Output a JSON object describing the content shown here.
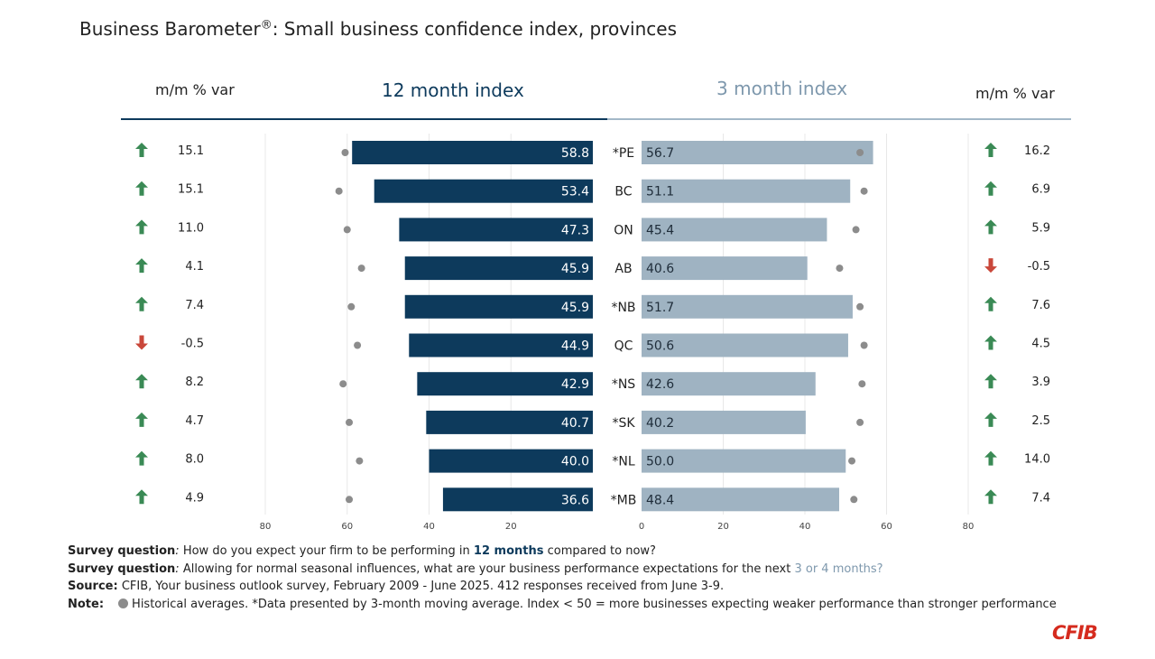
{
  "title": {
    "main": "Business Barometer",
    "sup": "®",
    "rest": ": Small business confidence index, provinces"
  },
  "headers": {
    "left_var": "m/m % var",
    "index12": "12 month index",
    "index3": "3 month index",
    "right_var": "m/m % var"
  },
  "colors": {
    "dark": "#0d3a5c",
    "light": "#9fb3c2",
    "up": "#3a8a55",
    "down": "#c9473a",
    "dot": "#8c8c8c"
  },
  "chart_data": {
    "type": "bar",
    "categories": [
      "*PE",
      "BC",
      "ON",
      "AB",
      "*NB",
      "QC",
      "*NS",
      "*SK",
      "*NL",
      "*MB"
    ],
    "series": [
      {
        "name": "12 month index",
        "values": [
          58.8,
          53.4,
          47.3,
          45.9,
          45.9,
          44.9,
          42.9,
          40.7,
          40.0,
          36.6
        ],
        "historical_avg": [
          60.5,
          62,
          60,
          56.5,
          59,
          57.5,
          61,
          59.5,
          57,
          59.5
        ],
        "mm_var": [
          15.1,
          15.1,
          11.0,
          4.1,
          7.4,
          -0.5,
          8.2,
          4.7,
          8.0,
          4.9
        ],
        "mm_var_text": [
          "15.1",
          "15.1",
          "11.0",
          "4.1",
          "7.4",
          "-0.5",
          "8.2",
          "4.7",
          "8.0",
          "4.9"
        ]
      },
      {
        "name": "3 month index",
        "values": [
          56.7,
          51.1,
          45.4,
          40.6,
          51.7,
          50.6,
          42.6,
          40.2,
          50.0,
          48.4
        ],
        "historical_avg": [
          53.5,
          54.5,
          52.5,
          48.5,
          53.5,
          54.5,
          54,
          53.5,
          51.5,
          52
        ],
        "mm_var": [
          16.2,
          6.9,
          5.9,
          -0.5,
          7.6,
          4.5,
          3.9,
          2.5,
          14.0,
          7.4
        ],
        "mm_var_text": [
          "16.2",
          "6.9",
          "5.9",
          "-0.5",
          "7.6",
          "4.5",
          "3.9",
          "2.5",
          "14.0",
          "7.4"
        ]
      }
    ],
    "left_axis": {
      "range": [
        80,
        0
      ],
      "ticks": [
        "80",
        "60",
        "40",
        "20"
      ]
    },
    "right_axis": {
      "range": [
        0,
        80
      ],
      "ticks": [
        "0",
        "20",
        "40",
        "60",
        "80"
      ]
    },
    "grid": true
  },
  "notes": {
    "q1_label": "Survey question",
    "q1_colon": ":",
    "q1_text_a": " How do you expect your firm to be performing in ",
    "q1_highlight": "12 months",
    "q1_text_b": " compared to now?",
    "q2_label": "Survey question",
    "q2_colon": ":",
    "q2_text_a": " Allowing for normal seasonal influences, what are your business performance expectations for the next ",
    "q2_highlight": "3 or 4 months?",
    "source_label": "Source:",
    "source_text": " CFIB, Your business outlook survey, February 2009 - June 2025. 412 responses received from June 3-9.",
    "note_label": "Note:",
    "note_text": "Historical averages. *Data presented by 3-month moving average. Index < 50 = more businesses expecting weaker performance than stronger performance"
  },
  "logo": "CFIB"
}
